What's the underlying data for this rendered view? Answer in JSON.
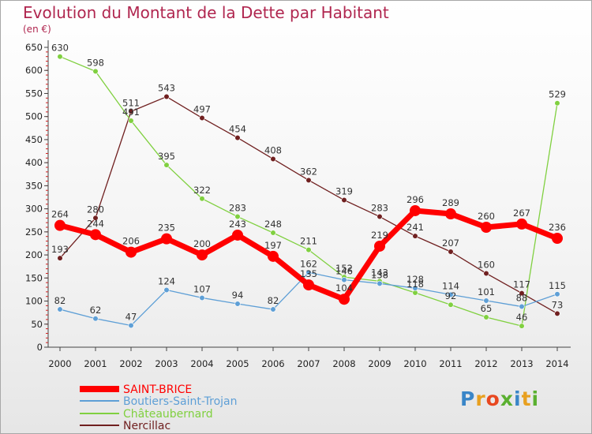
{
  "title": "Evolution du Montant de la Dette par Habitant",
  "unit": "(en €)",
  "logo": {
    "text": "Proxiti",
    "colors": [
      "#3a86c8",
      "#e8a020",
      "#e84820",
      "#5ab030",
      "#3a86c8",
      "#e8a020",
      "#5ab030"
    ]
  },
  "chart_data": {
    "type": "line",
    "x": [
      "2000",
      "2001",
      "2002",
      "2003",
      "2004",
      "2005",
      "2006",
      "2007",
      "2008",
      "2009",
      "2010",
      "2011",
      "2012",
      "2013",
      "2014"
    ],
    "ylim": [
      0,
      650
    ],
    "yticks": [
      0,
      50,
      100,
      150,
      200,
      250,
      300,
      350,
      400,
      450,
      500,
      550,
      600,
      650
    ],
    "grid": false,
    "legend_position": "bottom-left",
    "series": [
      {
        "name": "SAINT-BRICE",
        "color": "#ff0000",
        "values": [
          264,
          244,
          206,
          235,
          200,
          243,
          197,
          135,
          104,
          219,
          296,
          289,
          260,
          267,
          236
        ]
      },
      {
        "name": "Boutiers-Saint-Trojan",
        "color": "#5e9fd6",
        "values": [
          82,
          62,
          47,
          124,
          107,
          94,
          82,
          162,
          146,
          138,
          128,
          114,
          101,
          88,
          115
        ]
      },
      {
        "name": "Châteaubernard",
        "color": "#80d040",
        "values": [
          630,
          598,
          491,
          395,
          322,
          283,
          248,
          211,
          152,
          143,
          118,
          92,
          65,
          46,
          529
        ]
      },
      {
        "name": "Nercillac",
        "color": "#702020",
        "values": [
          193,
          280,
          511,
          543,
          497,
          454,
          408,
          362,
          319,
          283,
          241,
          207,
          160,
          117,
          73
        ]
      }
    ]
  }
}
